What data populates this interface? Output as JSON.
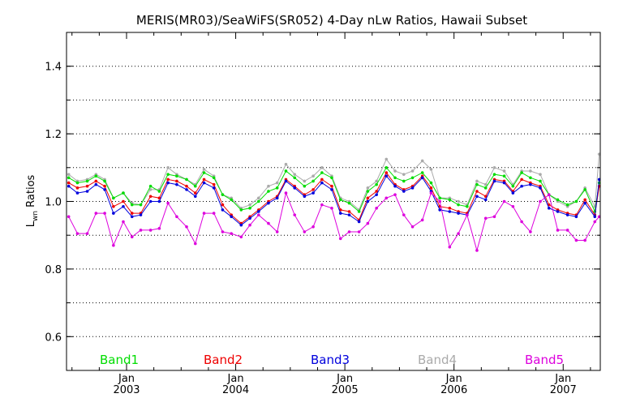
{
  "chart_data": {
    "type": "line",
    "title": "MERIS(MR03)/SeaWiFS(SR052) 4-Day nLw Ratios, Hawaii Subset",
    "ylabel": "L",
    "ylabel_sub": "wn",
    "ylabel_suffix": " Ratios",
    "xlabel": "",
    "ylim": [
      0.5,
      1.5
    ],
    "xlim": [
      2002.45,
      2007.34
    ],
    "y_ticks": [
      0.6,
      0.8,
      1.0,
      1.2,
      1.4
    ],
    "y_tick_labels": [
      "0.6",
      "0.8",
      "1.0",
      "1.2",
      "1.4"
    ],
    "y_gridlines": [
      0.6,
      0.7,
      0.8,
      0.9,
      1.0,
      1.1,
      1.2,
      1.3,
      1.4
    ],
    "x_ticks": [
      {
        "month": "Jan",
        "year": "2003",
        "x": 2003.0
      },
      {
        "month": "Jan",
        "year": "2004",
        "x": 2004.0
      },
      {
        "month": "Jan",
        "year": "2005",
        "x": 2005.0
      },
      {
        "month": "Jan",
        "year": "2006",
        "x": 2006.0
      },
      {
        "month": "Jan",
        "year": "2007",
        "x": 2007.0
      }
    ],
    "grid": "horizontal dotted",
    "legend_position": "bottom inside plot",
    "x": [
      2002.47,
      2002.55,
      2002.64,
      2002.72,
      2002.8,
      2002.88,
      2002.97,
      2003.05,
      2003.13,
      2003.22,
      2003.3,
      2003.38,
      2003.46,
      2003.55,
      2003.63,
      2003.71,
      2003.8,
      2003.88,
      2003.96,
      2004.05,
      2004.13,
      2004.21,
      2004.3,
      2004.38,
      2004.46,
      2004.54,
      2004.63,
      2004.71,
      2004.79,
      2004.88,
      2004.96,
      2005.04,
      2005.13,
      2005.21,
      2005.29,
      2005.38,
      2005.46,
      2005.54,
      2005.62,
      2005.71,
      2005.79,
      2005.87,
      2005.96,
      2006.04,
      2006.12,
      2006.21,
      2006.29,
      2006.37,
      2006.46,
      2006.54,
      2006.62,
      2006.7,
      2006.79,
      2006.87,
      2006.95,
      2007.04,
      2007.12,
      2007.2,
      2007.29,
      2007.33
    ],
    "series": [
      {
        "name": "Band1",
        "color": "#00dd00",
        "values": [
          1.07,
          1.055,
          1.06,
          1.075,
          1.06,
          1.01,
          1.025,
          0.99,
          0.99,
          1.045,
          1.03,
          1.08,
          1.075,
          1.065,
          1.045,
          1.085,
          1.07,
          1.02,
          1.005,
          0.975,
          0.98,
          1.0,
          1.03,
          1.04,
          1.09,
          1.07,
          1.045,
          1.06,
          1.085,
          1.07,
          1.005,
          0.995,
          0.97,
          1.03,
          1.05,
          1.1,
          1.07,
          1.06,
          1.07,
          1.085,
          1.055,
          1.01,
          1.005,
          0.99,
          0.985,
          1.05,
          1.04,
          1.08,
          1.075,
          1.045,
          1.085,
          1.07,
          1.06,
          1.02,
          1.005,
          0.99,
          1.0,
          1.035,
          0.97,
          1.055
        ]
      },
      {
        "name": "Band2",
        "color": "#ee0000",
        "values": [
          1.055,
          1.04,
          1.045,
          1.06,
          1.045,
          0.985,
          1.0,
          0.965,
          0.965,
          1.015,
          1.01,
          1.065,
          1.06,
          1.045,
          1.025,
          1.065,
          1.05,
          0.99,
          0.96,
          0.935,
          0.955,
          0.975,
          1.0,
          1.015,
          1.065,
          1.045,
          1.02,
          1.035,
          1.065,
          1.045,
          0.975,
          0.97,
          0.945,
          1.01,
          1.03,
          1.085,
          1.05,
          1.035,
          1.045,
          1.075,
          1.04,
          0.985,
          0.98,
          0.97,
          0.965,
          1.03,
          1.015,
          1.065,
          1.06,
          1.03,
          1.065,
          1.055,
          1.045,
          0.99,
          0.975,
          0.965,
          0.96,
          1.005,
          0.96,
          1.045
        ]
      },
      {
        "name": "Band3",
        "color": "#0000dd",
        "values": [
          1.045,
          1.025,
          1.03,
          1.05,
          1.035,
          0.965,
          0.985,
          0.955,
          0.96,
          1.0,
          1.0,
          1.055,
          1.05,
          1.035,
          1.015,
          1.055,
          1.04,
          0.975,
          0.955,
          0.93,
          0.95,
          0.97,
          0.995,
          1.01,
          1.06,
          1.04,
          1.015,
          1.025,
          1.055,
          1.035,
          0.965,
          0.96,
          0.94,
          1.0,
          1.02,
          1.075,
          1.045,
          1.03,
          1.04,
          1.07,
          1.03,
          0.975,
          0.97,
          0.965,
          0.96,
          1.015,
          1.005,
          1.06,
          1.055,
          1.025,
          1.045,
          1.05,
          1.04,
          0.98,
          0.97,
          0.96,
          0.955,
          0.995,
          0.955,
          1.065
        ]
      },
      {
        "name": "Band4",
        "color": "#aaaaaa",
        "values": [
          1.08,
          1.06,
          1.065,
          1.08,
          1.065,
          1.01,
          1.025,
          0.995,
          0.99,
          1.035,
          1.035,
          1.1,
          1.08,
          1.065,
          1.05,
          1.095,
          1.075,
          1.02,
          1.01,
          0.98,
          0.99,
          1.01,
          1.045,
          1.055,
          1.11,
          1.08,
          1.06,
          1.075,
          1.1,
          1.075,
          1.01,
          1.0,
          0.975,
          1.04,
          1.06,
          1.125,
          1.09,
          1.08,
          1.09,
          1.12,
          1.095,
          1.01,
          1.01,
          1.0,
          0.99,
          1.06,
          1.05,
          1.1,
          1.09,
          1.05,
          1.09,
          1.09,
          1.08,
          1.02,
          1.0,
          0.985,
          1.0,
          1.04,
          0.985,
          1.14
        ]
      },
      {
        "name": "Band5",
        "color": "#dd00dd",
        "values": [
          0.955,
          0.905,
          0.905,
          0.965,
          0.965,
          0.87,
          0.94,
          0.895,
          0.915,
          0.915,
          0.92,
          0.995,
          0.955,
          0.925,
          0.875,
          0.965,
          0.965,
          0.91,
          0.905,
          0.895,
          0.93,
          0.96,
          0.935,
          0.91,
          1.025,
          0.96,
          0.91,
          0.925,
          0.99,
          0.98,
          0.89,
          0.91,
          0.91,
          0.935,
          0.98,
          1.01,
          1.02,
          0.96,
          0.925,
          0.945,
          1.025,
          1.0,
          0.865,
          0.905,
          0.96,
          0.855,
          0.95,
          0.955,
          1.0,
          0.985,
          0.94,
          0.91,
          1.0,
          1.02,
          0.915,
          0.915,
          0.885,
          0.885,
          0.94,
          0.955
        ]
      }
    ]
  }
}
